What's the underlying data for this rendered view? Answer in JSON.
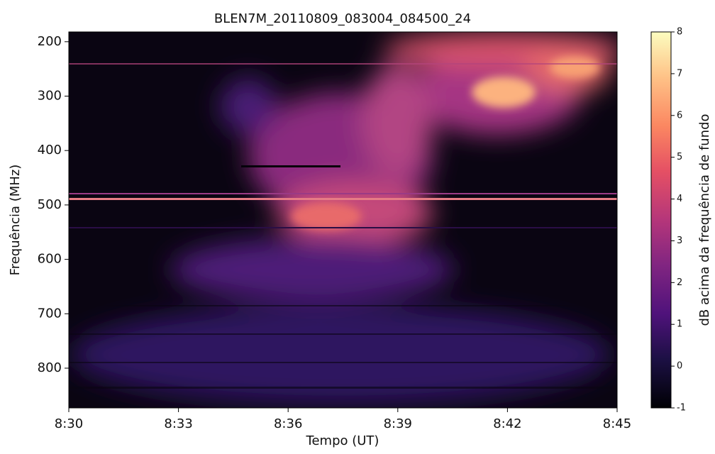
{
  "chart_data": {
    "type": "spectrogram",
    "title": "BLEN7M_20110809_083004_084500_24",
    "x_label": "Tempo (UT)",
    "y_label": "Frequência (MHz)",
    "xlim": [
      "8:30",
      "8:45"
    ],
    "xticks": [
      "8:30",
      "8:33",
      "8:36",
      "8:39",
      "8:42",
      "8:45"
    ],
    "ylim": [
      873,
      182
    ],
    "yticks": [
      200,
      300,
      400,
      500,
      600,
      700,
      800
    ],
    "colormap": "magma",
    "colorbar": {
      "label": "dB acima da frequência de fundo",
      "lim": [
        -1,
        8
      ],
      "ticks": [
        -1,
        0,
        1,
        2,
        3,
        4,
        5,
        6,
        7,
        8
      ]
    }
  }
}
